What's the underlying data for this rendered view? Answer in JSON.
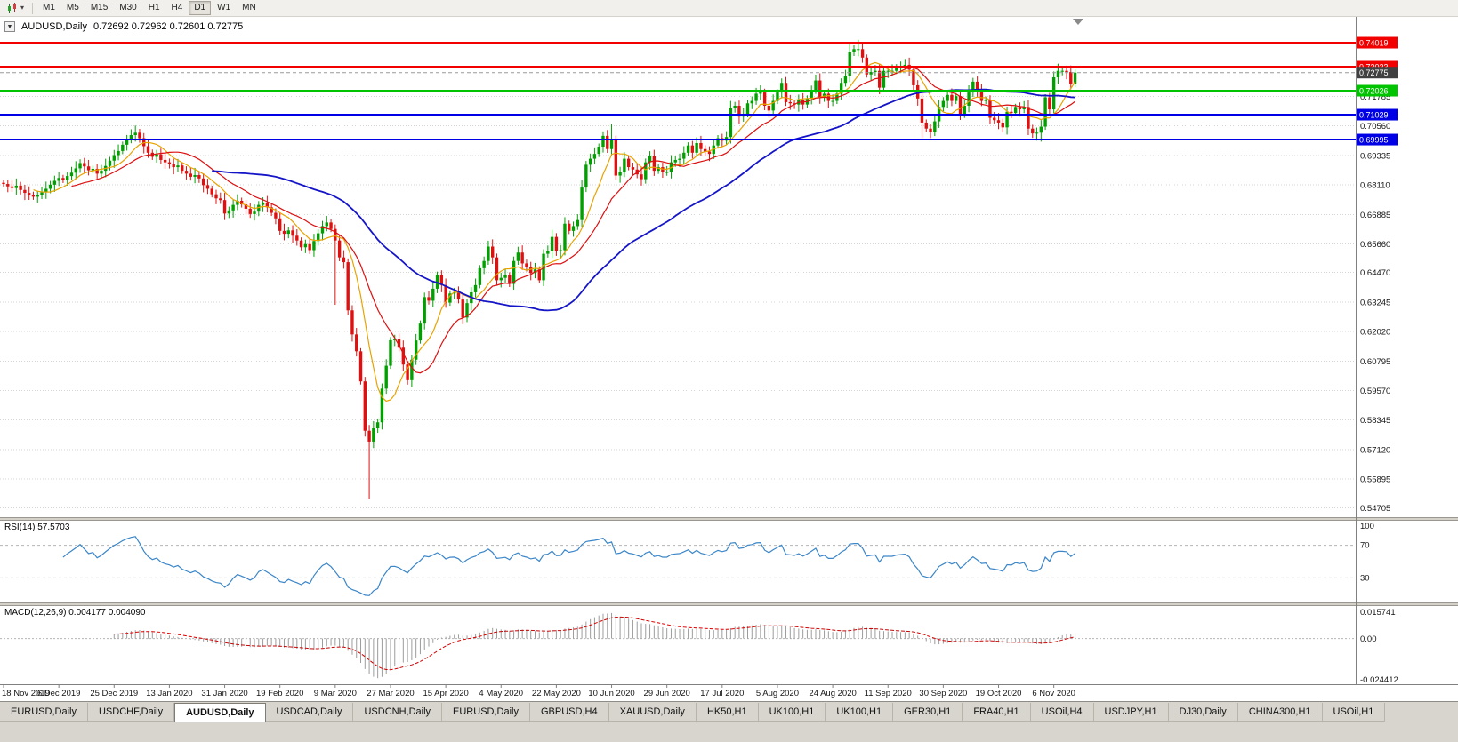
{
  "toolbar": {
    "charts_button_glyph": "▾",
    "timeframes": [
      {
        "label": "M1",
        "active": false
      },
      {
        "label": "M5",
        "active": false
      },
      {
        "label": "M15",
        "active": false
      },
      {
        "label": "M30",
        "active": false
      },
      {
        "label": "H1",
        "active": false
      },
      {
        "label": "H4",
        "active": false
      },
      {
        "label": "D1",
        "active": true
      },
      {
        "label": "W1",
        "active": false
      },
      {
        "label": "MN",
        "active": false
      }
    ]
  },
  "chart": {
    "collapse_glyph": "▼",
    "symbol_title": "AUDUSD,Daily",
    "ohlc_readout": "0.72692 0.72962 0.72601 0.72775"
  },
  "rsi": {
    "label": "RSI(14) 57.5703",
    "period": 14,
    "value": 57.5703,
    "levels": [
      100,
      70,
      30
    ]
  },
  "macd": {
    "label": "MACD(12,26,9) 0.004177 0.004090",
    "params": [
      12,
      26,
      9
    ],
    "values": [
      0.004177,
      0.00409
    ],
    "axis_labels": [
      "0.015741",
      "0.00",
      "-0.024412"
    ]
  },
  "tabs": [
    {
      "label": "EURUSD,Daily",
      "active": false
    },
    {
      "label": "USDCHF,Daily",
      "active": false
    },
    {
      "label": "AUDUSD,Daily",
      "active": true
    },
    {
      "label": "USDCAD,Daily",
      "active": false
    },
    {
      "label": "USDCNH,Daily",
      "active": false
    },
    {
      "label": "EURUSD,Daily",
      "active": false
    },
    {
      "label": "GBPUSD,H4",
      "active": false
    },
    {
      "label": "XAUUSD,Daily",
      "active": false
    },
    {
      "label": "HK50,H1",
      "active": false
    },
    {
      "label": "UK100,H1",
      "active": false
    },
    {
      "label": "UK100,H1",
      "active": false
    },
    {
      "label": "GER30,H1",
      "active": false
    },
    {
      "label": "FRA40,H1",
      "active": false
    },
    {
      "label": "USOil,H4",
      "active": false
    },
    {
      "label": "USDJPY,H1",
      "active": false
    },
    {
      "label": "DJ30,Daily",
      "active": false
    },
    {
      "label": "CHINA300,H1",
      "active": false
    },
    {
      "label": "USOil,H1",
      "active": false
    }
  ],
  "chart_data": {
    "type": "candlestick",
    "symbol": "AUDUSD",
    "timeframe": "Daily",
    "current_ohlc": {
      "open": 0.72692,
      "high": 0.72962,
      "low": 0.72601,
      "close": 0.72775
    },
    "ylim": [
      0.5431,
      0.7509
    ],
    "price_axis_ticks": [
      "0.71785",
      "0.70560",
      "0.69335",
      "0.68110",
      "0.66885",
      "0.65660",
      "0.64470",
      "0.63245",
      "0.62020",
      "0.60795",
      "0.59570",
      "0.58345",
      "0.57120",
      "0.55895",
      "0.54705"
    ],
    "date_labels": [
      "18 Nov 2019",
      "6 Dec 2019",
      "25 Dec 2019",
      "13 Jan 2020",
      "31 Jan 2020",
      "19 Feb 2020",
      "9 Mar 2020",
      "27 Mar 2020",
      "15 Apr 2020",
      "4 May 2020",
      "22 May 2020",
      "10 Jun 2020",
      "29 Jun 2020",
      "17 Jul 2020",
      "5 Aug 2020",
      "24 Aug 2020",
      "11 Sep 2020",
      "30 Sep 2020",
      "19 Oct 2020",
      "6 Nov 2020"
    ],
    "label_every": 13,
    "first_open": 0.682,
    "closes": [
      0.6815,
      0.6805,
      0.6798,
      0.6808,
      0.679,
      0.6778,
      0.677,
      0.6762,
      0.6768,
      0.678,
      0.6795,
      0.6812,
      0.6828,
      0.684,
      0.6832,
      0.6848,
      0.6862,
      0.688,
      0.6902,
      0.6888,
      0.6872,
      0.6878,
      0.6858,
      0.687,
      0.689,
      0.6912,
      0.6935,
      0.6952,
      0.6978,
      0.7,
      0.7018,
      0.7028,
      0.7005,
      0.6972,
      0.6945,
      0.6928,
      0.6938,
      0.6915,
      0.6905,
      0.6898,
      0.6885,
      0.6892,
      0.687,
      0.6858,
      0.6845,
      0.6852,
      0.6838,
      0.681,
      0.6795,
      0.6772,
      0.6755,
      0.6748,
      0.6692,
      0.6705,
      0.6728,
      0.6745,
      0.673,
      0.6712,
      0.669,
      0.67,
      0.6728,
      0.6738,
      0.6718,
      0.6695,
      0.6672,
      0.662,
      0.6608,
      0.6622,
      0.66,
      0.658,
      0.6552,
      0.6565,
      0.654,
      0.6578,
      0.661,
      0.664,
      0.6655,
      0.6628,
      0.658,
      0.651,
      0.649,
      0.629,
      0.619,
      0.612,
      0.5995,
      0.579,
      0.5745,
      0.58,
      0.5825,
      0.5965,
      0.606,
      0.6166,
      0.617,
      0.6135,
      0.6065,
      0.6,
      0.6085,
      0.6165,
      0.6235,
      0.6345,
      0.633,
      0.638,
      0.6435,
      0.6395,
      0.6322,
      0.636,
      0.6365,
      0.6335,
      0.626,
      0.632,
      0.6365,
      0.6395,
      0.6465,
      0.6495,
      0.6555,
      0.651,
      0.6415,
      0.6425,
      0.6435,
      0.64,
      0.6495,
      0.653,
      0.6485,
      0.647,
      0.6445,
      0.646,
      0.6415,
      0.6525,
      0.6535,
      0.6595,
      0.6535,
      0.654,
      0.665,
      0.662,
      0.664,
      0.6665,
      0.68,
      0.6895,
      0.692,
      0.694,
      0.697,
      0.7015,
      0.696,
      0.7,
      0.685,
      0.6865,
      0.692,
      0.6885,
      0.6875,
      0.6855,
      0.6835,
      0.6905,
      0.693,
      0.687,
      0.6885,
      0.6865,
      0.6865,
      0.6905,
      0.6915,
      0.692,
      0.6945,
      0.6975,
      0.6945,
      0.6985,
      0.696,
      0.695,
      0.694,
      0.6975,
      0.7005,
      0.6995,
      0.701,
      0.713,
      0.714,
      0.7095,
      0.7105,
      0.715,
      0.716,
      0.719,
      0.7195,
      0.714,
      0.712,
      0.716,
      0.7195,
      0.7235,
      0.7155,
      0.715,
      0.7145,
      0.7165,
      0.7145,
      0.717,
      0.7205,
      0.7245,
      0.7175,
      0.719,
      0.716,
      0.716,
      0.719,
      0.7235,
      0.7265,
      0.7365,
      0.7375,
      0.7375,
      0.734,
      0.727,
      0.728,
      0.7285,
      0.7215,
      0.7285,
      0.7285,
      0.7285,
      0.73,
      0.7305,
      0.731,
      0.729,
      0.7225,
      0.717,
      0.707,
      0.7045,
      0.703,
      0.7075,
      0.7135,
      0.716,
      0.7185,
      0.716,
      0.718,
      0.7105,
      0.714,
      0.7195,
      0.724,
      0.7205,
      0.716,
      0.7165,
      0.709,
      0.708,
      0.707,
      0.705,
      0.7115,
      0.711,
      0.7135,
      0.7125,
      0.7135,
      0.7045,
      0.7025,
      0.7028,
      0.7053,
      0.7175,
      0.7125,
      0.7258,
      0.7285,
      0.7285,
      0.728,
      0.723,
      0.72775
    ],
    "wick_overrides": {
      "31": {
        "high": 0.7035
      },
      "78": {
        "low": 0.6313
      },
      "86": {
        "low": 0.5506
      },
      "143": {
        "high": 0.7063
      },
      "201": {
        "high": 0.7414
      },
      "216": {
        "low": 0.7006
      },
      "244": {
        "low": 0.6991
      }
    },
    "colors": {
      "bull": "#00a000",
      "bear": "#e01010",
      "background": "#ffffff",
      "grid": "#d6d6d6",
      "rsi_line": "#3b86c8",
      "macd_hist": "#9c9c9c",
      "macd_signal": "#d40000"
    },
    "moving_averages": [
      {
        "period": 8,
        "color": "#e8a200",
        "width": 1.2
      },
      {
        "period": 17,
        "color": "#dc1010",
        "width": 1.2
      },
      {
        "period": 50,
        "color": "#1515c8",
        "width": 1.8
      }
    ],
    "horizontal_lines": [
      {
        "price": 0.74019,
        "label": "0.74019",
        "color": "#f20000"
      },
      {
        "price": 0.73023,
        "label": "0.73023",
        "color": "#f20000"
      },
      {
        "price": 0.72026,
        "label": "0.72026",
        "color": "#00c400"
      },
      {
        "price": 0.71029,
        "label": "0.71029",
        "color": "#0000e6"
      },
      {
        "price": 0.69995,
        "label": "0.69995",
        "color": "#0000e6"
      }
    ],
    "current_price": {
      "value": 0.72775,
      "label": "0.72775",
      "box_color": "#404040"
    },
    "rsi_period": 14,
    "macd_params": [
      12,
      26,
      9
    ],
    "macd_scale": [
      0.015741,
      -0.024412
    ]
  }
}
